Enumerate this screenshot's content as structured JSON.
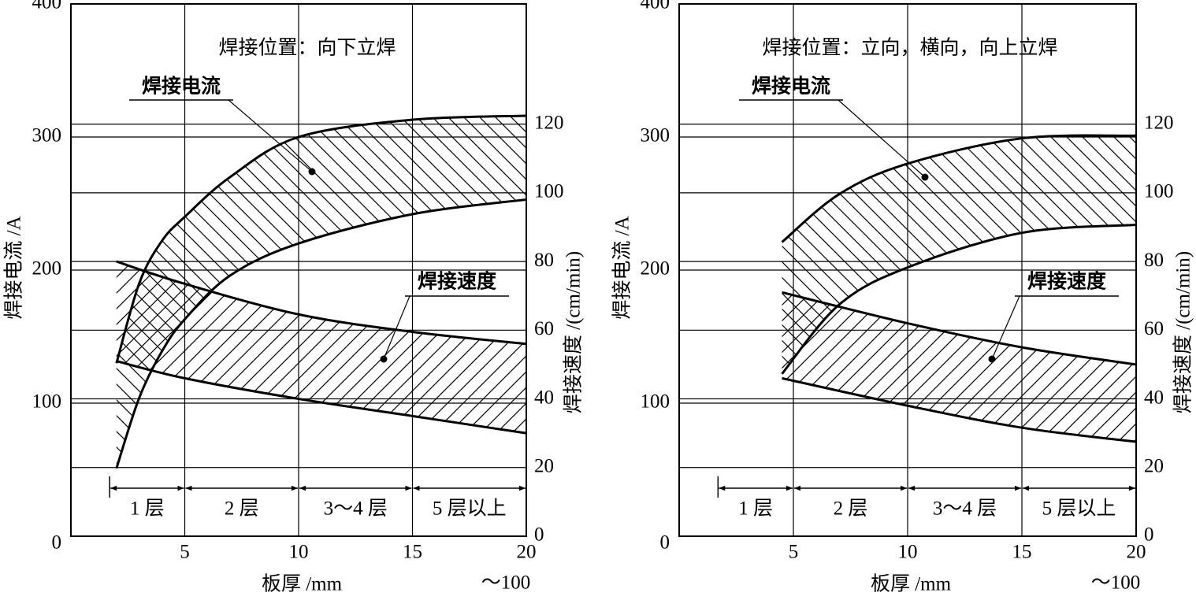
{
  "chart_data": [
    {
      "type": "band",
      "title": "焊接位置：向下立焊",
      "xlabel": "板厚 /mm",
      "x_note": "～100",
      "ylabel": "焊接电流 /A",
      "y2label": "焊接速度 /(cm/min)",
      "xlim": [
        0,
        20
      ],
      "xticks": [
        5,
        10,
        15,
        20
      ],
      "ylim": [
        0,
        400
      ],
      "yticks": [
        0,
        100,
        200,
        300,
        400
      ],
      "y2lim": [
        0,
        155
      ],
      "y2ticks": [
        0,
        20,
        40,
        60,
        80,
        100,
        120
      ],
      "grid": true,
      "series": [
        {
          "name": "焊接电流",
          "axis": "y",
          "hatch": "back",
          "color": "#000000",
          "x": [
            2,
            3,
            4,
            5,
            7,
            10,
            15,
            20
          ],
          "upper": [
            130,
            190,
            222,
            240,
            270,
            300,
            313,
            316
          ],
          "lower": [
            51,
            104,
            139,
            163,
            196,
            220,
            242,
            253
          ]
        },
        {
          "name": "焊接速度",
          "axis": "y2",
          "hatch": "forward",
          "color": "#000000",
          "x": [
            2,
            5,
            10,
            15,
            20
          ],
          "upper": [
            80,
            73.5,
            64.6,
            59.5,
            56
          ],
          "lower": [
            51,
            46,
            40,
            35,
            30
          ]
        }
      ],
      "layers": [
        {
          "label": "1 层",
          "from": 1.7,
          "to": 5
        },
        {
          "label": "2 层",
          "from": 5,
          "to": 10
        },
        {
          "label": "3～4 层",
          "from": 10,
          "to": 15
        },
        {
          "label": "5 层以上",
          "from": 15,
          "to": 20
        }
      ]
    },
    {
      "type": "band",
      "title": "焊接位置：立向，横向，向上立焊",
      "xlabel": "板厚 /mm",
      "x_note": "～100",
      "ylabel": "焊接电流 /A",
      "y2label": "焊接速度 /(cm/min)",
      "xlim": [
        0,
        20
      ],
      "xticks": [
        5,
        10,
        15,
        20
      ],
      "ylim": [
        0,
        400
      ],
      "yticks": [
        0,
        100,
        200,
        300,
        400
      ],
      "y2lim": [
        0,
        155
      ],
      "y2ticks": [
        0,
        20,
        40,
        60,
        80,
        100,
        120
      ],
      "grid": true,
      "series": [
        {
          "name": "焊接电流",
          "axis": "y",
          "hatch": "back",
          "color": "#000000",
          "x": [
            4.5,
            7,
            10,
            15,
            20
          ],
          "upper": [
            221,
            257,
            280,
            299,
            301
          ],
          "lower": [
            122,
            174,
            202,
            228,
            234
          ]
        },
        {
          "name": "焊接速度",
          "axis": "y2",
          "hatch": "forward",
          "color": "#000000",
          "x": [
            4.5,
            10,
            15,
            20
          ],
          "upper": [
            71,
            62,
            55,
            50
          ],
          "lower": [
            46,
            38,
            31.6,
            27.5
          ]
        }
      ],
      "layers": [
        {
          "label": "1 层",
          "from": 1.7,
          "to": 5
        },
        {
          "label": "2 层",
          "from": 5,
          "to": 10
        },
        {
          "label": "3～4 层",
          "from": 10,
          "to": 15
        },
        {
          "label": "5 层以上",
          "from": 15,
          "to": 20
        }
      ]
    }
  ]
}
